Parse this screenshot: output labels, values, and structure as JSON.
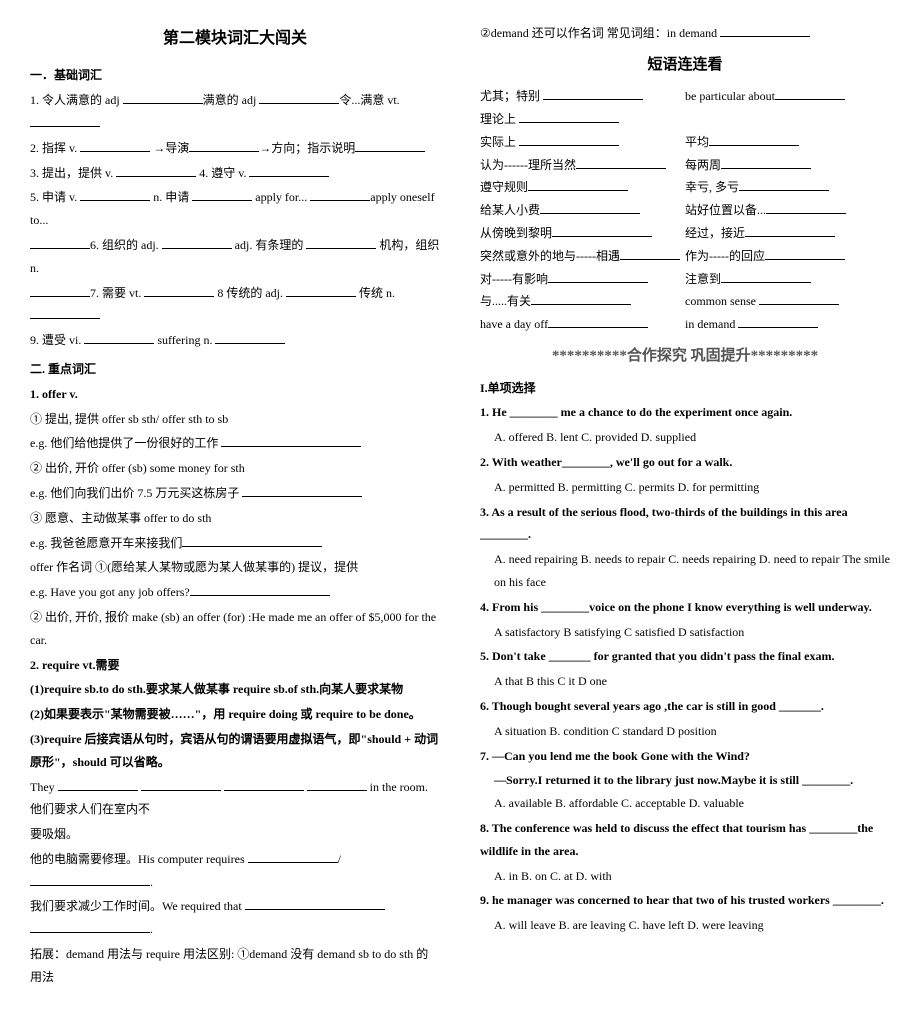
{
  "title_left": "第二模块词汇大闯关",
  "sec1": "一．基础词汇",
  "l1": "1. 令人满意的 adj",
  "l1b": "满意的 adj",
  "l1c": "令...满意 vt.",
  "l2": "2. 指挥 v.",
  "l2b": "→导演",
  "l2c": "→方向；指示说明",
  "l3a": "3. 提出，提供 v.",
  "l3b": "4. 遵守 v.",
  "l5a": "5. 申请 v.",
  "l5b": "n. 申请",
  "l5c": "apply for...",
  "l5d": "apply oneself to...",
  "l6a": "6. 组织的 adj.",
  "l6b": "adj. 有条理的",
  "l6c": "机构，组织 n.",
  "l7a": "7. 需要 vt.",
  "l7b": "8 传统的 adj.",
  "l7c": "传统 n.",
  "l9a": "9. 遭受 vi.",
  "l9b": "suffering n.",
  "sec2": "二. 重点词汇",
  "off1": "1. offer v.",
  "off2": "① 提出, 提供  offer sb sth/ offer sth to sb",
  "off3": "e.g. 他们给他提供了一份很好的工作",
  "off4": "② 出价,  开价 offer (sb) some money for sth",
  "off5": "e.g. 他们向我们出价 7.5 万元买这栋房子",
  "off6": "③ 愿意、主动做某事 offer to do sth",
  "off7": "e.g. 我爸爸愿意开车来接我们",
  "off8": "offer 作名词  ①(愿给某人某物或愿为某人做某事的) 提议，提供",
  "off9": "e.g. Have you got any job offers?",
  "off10": "②  出价, 开价, 报价  make (sb) an offer (for)  :He made me an offer of $5,000 for the car.",
  "req0": "2. require vt.需要",
  "req1": "(1)require sb.to do sth.要求某人做某事  require sb.of sth.向某人要求某物",
  "req2": "(2)如果要表示\"某物需要被……\"，用 require doing 或 require to be done。",
  "req3": "(3)require 后接宾语从句时，宾语从句的谓语要用虚拟语气，即\"should + 动词原形\"，should 可以省略。",
  "req4a": "They",
  "req4b": "in the room.  他们要求人们在室内不",
  "req4c": "要吸烟。",
  "req5": "他的电脑需要修理。His computer requires",
  "req6": "我们要求减少工作时间。We required that",
  "req7": "拓展：demand 用法与 require 用法区别: ①demand 没有 demand sb to do sth 的用法",
  "demand_line": "②demand 还可以作名词        常见词组：in demand",
  "title_phrases": "短语连连看",
  "p1a": "尤其；特别",
  "p1b": "be particular about",
  "p2": "理论上",
  "p3a": "实际上",
  "p3b": "平均",
  "p4a": "认为------理所当然",
  "p4b": "每两周",
  "p5a": "遵守规则",
  "p5b": "幸亏, 多亏",
  "p6a": "给某人小费",
  "p6b": "站好位置以备...",
  "p7a": "从傍晚到黎明",
  "p7b": "经过，接近",
  "p8a": "突然或意外的地与-----相遇",
  "p8b": "作为-----的回应",
  "p9a": "对-----有影响",
  "p9b": "注意到",
  "p10a": "与.....有关",
  "p10b": "common sense",
  "p11a": "have a day off",
  "p11b": "in demand",
  "stars": "**********合作探究  巩固提升*********",
  "mc_head": "I.单项选择",
  "q1": "1.   He ________ me a chance to do the experiment once again.",
  "q1o": "A. offered        B. lent        C. provided        D. supplied",
  "q2": "2. With weather________, we'll go out for a walk.",
  "q2o": "A. permitted       B. permitting    C. permits     D. for permitting",
  "q3": "3. As a result of the serious flood, two-thirds of the buildings in this area ________.",
  "q3o": "A. need repairing B. needs to repair C. needs repairing   D. need to repair The smile on his face",
  "q4": "4. From his ________voice on the phone I know everything is well underway.",
  "q4o": "A satisfactory        B satisfying          C satisfied         D satisfaction",
  "q5": "5.   Don't take _______ for granted that you didn't pass the final exam.",
  "q5o": "A that      B this       C    it       D one",
  "q6": "6.   Though bought several years ago ,the car is still in good _______.",
  "q6o": "A    situation        B.  condition       C   standard       D position",
  "q7": "7. —Can you lend me the book Gone with the Wind?",
  "q7b": "—Sorry.I returned it to the library just now.Maybe it is still ________.",
  "q7o": "A.   available              B.   affordable              C.   acceptable              D.    valuable",
  "q8": "8. The conference was held to discuss the effect that tourism has ________the wildlife in the area.",
  "q8o": "A.   in              B.   on              C.   at              D.   with",
  "q9": "9. he manager was concerned to hear that two of his trusted workers ________.",
  "q9o": "A.   will leave           B.   are leaving           C.   have left           D.   were leaving"
}
